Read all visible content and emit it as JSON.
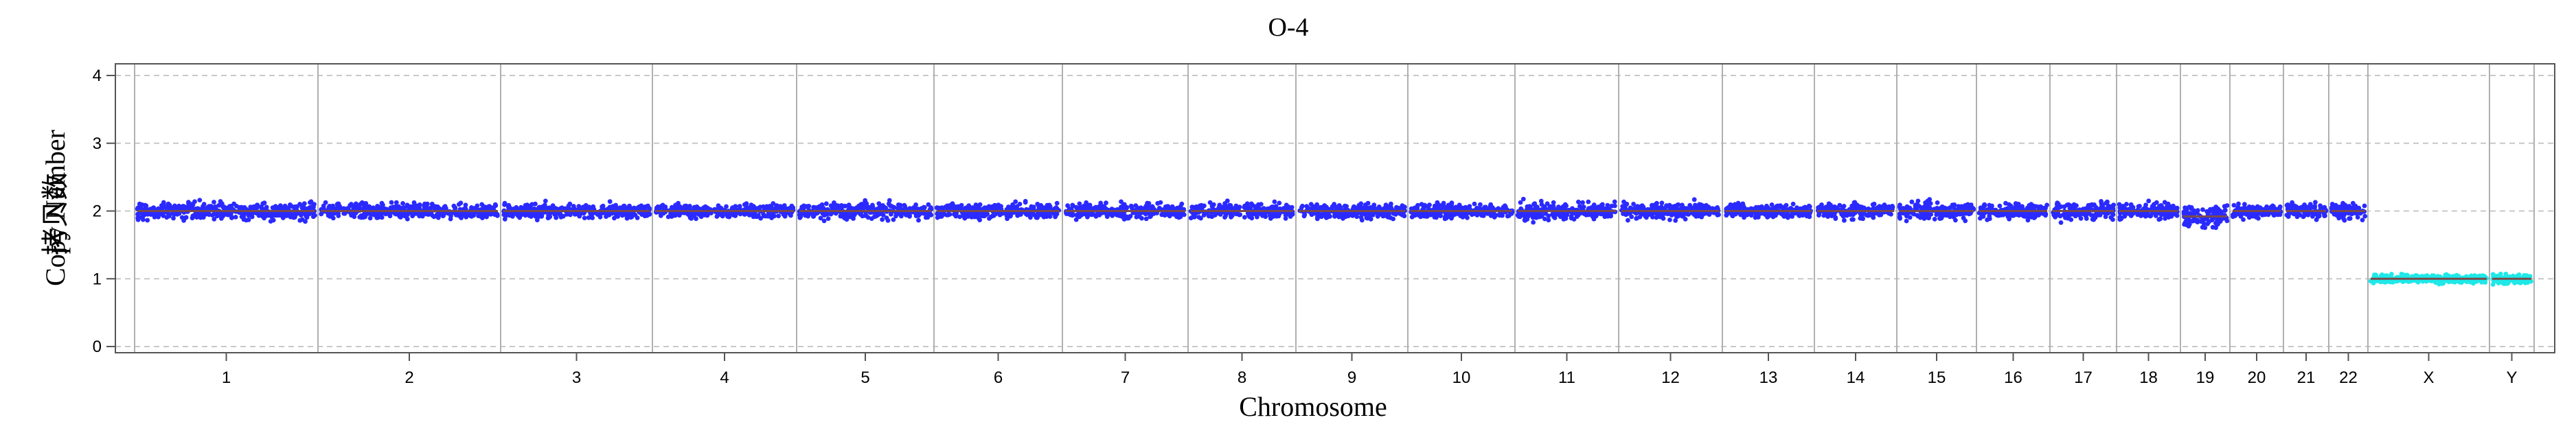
{
  "chart_data": {
    "type": "scatter",
    "title": "O-4",
    "xlabel": "Chromosome",
    "ylabel": "Copy Number",
    "ylabel_overlay": "拷贝数",
    "ylim": [
      0,
      4
    ],
    "yticks": [
      "0",
      "1",
      "2",
      "3",
      "4"
    ],
    "grid": "horizontal dashed at 0-4, vertical solid at chromosome boundaries",
    "colors": {
      "autosome_points": "#2a2aff",
      "sex_points": "#1fe8e8",
      "segment_line": "#7a4a4a",
      "grid": "#c8c8c8",
      "boundary": "#b0b0b0"
    },
    "chromosomes": [
      {
        "name": "1",
        "copy_number": 2.0,
        "spread": 0.12
      },
      {
        "name": "2",
        "copy_number": 2.0,
        "spread": 0.1
      },
      {
        "name": "3",
        "copy_number": 2.0,
        "spread": 0.1
      },
      {
        "name": "4",
        "copy_number": 2.0,
        "spread": 0.09
      },
      {
        "name": "5",
        "copy_number": 2.0,
        "spread": 0.11
      },
      {
        "name": "6",
        "copy_number": 2.0,
        "spread": 0.1
      },
      {
        "name": "7",
        "copy_number": 2.0,
        "spread": 0.11
      },
      {
        "name": "8",
        "copy_number": 2.0,
        "spread": 0.1
      },
      {
        "name": "9",
        "copy_number": 2.0,
        "spread": 0.1
      },
      {
        "name": "10",
        "copy_number": 2.0,
        "spread": 0.1
      },
      {
        "name": "11",
        "copy_number": 2.0,
        "spread": 0.12
      },
      {
        "name": "12",
        "copy_number": 2.0,
        "spread": 0.11
      },
      {
        "name": "13",
        "copy_number": 2.0,
        "spread": 0.1
      },
      {
        "name": "14",
        "copy_number": 2.0,
        "spread": 0.11
      },
      {
        "name": "15",
        "copy_number": 2.0,
        "spread": 0.12
      },
      {
        "name": "16",
        "copy_number": 2.0,
        "spread": 0.11
      },
      {
        "name": "17",
        "copy_number": 2.0,
        "spread": 0.13
      },
      {
        "name": "18",
        "copy_number": 2.0,
        "spread": 0.11
      },
      {
        "name": "19",
        "copy_number": 1.92,
        "spread": 0.15
      },
      {
        "name": "20",
        "copy_number": 2.0,
        "spread": 0.1
      },
      {
        "name": "21",
        "copy_number": 2.0,
        "spread": 0.11
      },
      {
        "name": "22",
        "copy_number": 2.0,
        "spread": 0.11
      },
      {
        "name": "X",
        "copy_number": 1.0,
        "spread": 0.06
      },
      {
        "name": "Y",
        "copy_number": 1.0,
        "spread": 0.07
      }
    ]
  }
}
